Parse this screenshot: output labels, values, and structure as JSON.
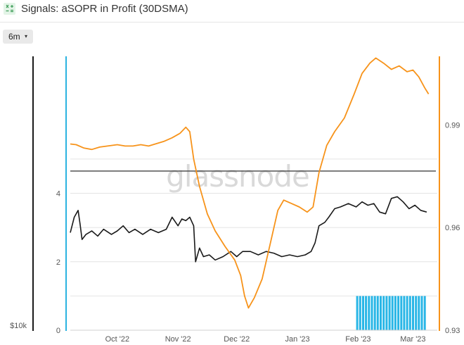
{
  "header": {
    "title": "Signals: aSOPR in Profit (30DSMA)",
    "icon": "spreadsheet-icon"
  },
  "controls": {
    "range_label": "6m",
    "range_caret": "▾"
  },
  "watermark": "glassnode",
  "colors": {
    "black_series": "#1a1a1a",
    "orange_series": "#f7931a",
    "threshold_line": "#444444",
    "signal_bars": "#29b6e6",
    "left_axis": "#1a1a1a",
    "blue_axis": "#2bb3e0",
    "right_axis": "#f7931a"
  },
  "chart_data": {
    "type": "line",
    "x_start": "2022-09-07",
    "x_end": "2023-03-12",
    "xticks": [
      {
        "date": "2022-10-01",
        "label": "Oct '22"
      },
      {
        "date": "2022-11-01",
        "label": "Nov '22"
      },
      {
        "date": "2022-12-01",
        "label": "Dec '22"
      },
      {
        "date": "2023-01-01",
        "label": "Jan '23"
      },
      {
        "date": "2023-02-01",
        "label": "Feb '23"
      },
      {
        "date": "2023-03-01",
        "label": "Mar '23"
      }
    ],
    "left_axis": {
      "ylim": [
        0,
        8
      ],
      "ticks": [
        0,
        2,
        4
      ],
      "bottom_label": "$10k"
    },
    "right_axis": {
      "ylim": [
        0.93,
        1.01
      ],
      "ticks": [
        0.93,
        0.96,
        0.99
      ]
    },
    "threshold": {
      "axis": "left",
      "value": 4.65
    },
    "series": [
      {
        "axis": "left",
        "color_key": "black_series",
        "points": [
          [
            "2022-09-07",
            2.85
          ],
          [
            "2022-09-09",
            3.3
          ],
          [
            "2022-09-11",
            3.5
          ],
          [
            "2022-09-12",
            3.1
          ],
          [
            "2022-09-13",
            2.65
          ],
          [
            "2022-09-15",
            2.8
          ],
          [
            "2022-09-18",
            2.9
          ],
          [
            "2022-09-21",
            2.75
          ],
          [
            "2022-09-24",
            2.95
          ],
          [
            "2022-09-28",
            2.8
          ],
          [
            "2022-10-01",
            2.9
          ],
          [
            "2022-10-04",
            3.05
          ],
          [
            "2022-10-07",
            2.85
          ],
          [
            "2022-10-10",
            2.95
          ],
          [
            "2022-10-14",
            2.8
          ],
          [
            "2022-10-18",
            2.95
          ],
          [
            "2022-10-22",
            2.85
          ],
          [
            "2022-10-26",
            2.95
          ],
          [
            "2022-10-29",
            3.3
          ],
          [
            "2022-11-01",
            3.05
          ],
          [
            "2022-11-03",
            3.25
          ],
          [
            "2022-11-05",
            3.2
          ],
          [
            "2022-11-07",
            3.3
          ],
          [
            "2022-11-09",
            3.05
          ],
          [
            "2022-11-10",
            2.0
          ],
          [
            "2022-11-12",
            2.4
          ],
          [
            "2022-11-14",
            2.15
          ],
          [
            "2022-11-17",
            2.2
          ],
          [
            "2022-11-20",
            2.05
          ],
          [
            "2022-11-24",
            2.15
          ],
          [
            "2022-11-28",
            2.3
          ],
          [
            "2022-12-01",
            2.15
          ],
          [
            "2022-12-04",
            2.3
          ],
          [
            "2022-12-08",
            2.3
          ],
          [
            "2022-12-12",
            2.2
          ],
          [
            "2022-12-16",
            2.3
          ],
          [
            "2022-12-20",
            2.25
          ],
          [
            "2022-12-24",
            2.15
          ],
          [
            "2022-12-28",
            2.2
          ],
          [
            "2023-01-01",
            2.15
          ],
          [
            "2023-01-05",
            2.2
          ],
          [
            "2023-01-08",
            2.3
          ],
          [
            "2023-01-10",
            2.55
          ],
          [
            "2023-01-12",
            3.05
          ],
          [
            "2023-01-15",
            3.15
          ],
          [
            "2023-01-17",
            3.3
          ],
          [
            "2023-01-20",
            3.55
          ],
          [
            "2023-01-23",
            3.6
          ],
          [
            "2023-01-27",
            3.7
          ],
          [
            "2023-01-31",
            3.6
          ],
          [
            "2023-02-03",
            3.75
          ],
          [
            "2023-02-06",
            3.65
          ],
          [
            "2023-02-09",
            3.7
          ],
          [
            "2023-02-12",
            3.45
          ],
          [
            "2023-02-15",
            3.4
          ],
          [
            "2023-02-18",
            3.85
          ],
          [
            "2023-02-21",
            3.9
          ],
          [
            "2023-02-24",
            3.75
          ],
          [
            "2023-02-27",
            3.55
          ],
          [
            "2023-03-02",
            3.65
          ],
          [
            "2023-03-05",
            3.5
          ],
          [
            "2023-03-08",
            3.45
          ]
        ]
      },
      {
        "axis": "right",
        "color_key": "orange_series",
        "points": [
          [
            "2022-09-07",
            0.9844
          ],
          [
            "2022-09-10",
            0.9842
          ],
          [
            "2022-09-14",
            0.9832
          ],
          [
            "2022-09-18",
            0.9828
          ],
          [
            "2022-09-22",
            0.9835
          ],
          [
            "2022-09-26",
            0.9838
          ],
          [
            "2022-10-01",
            0.9842
          ],
          [
            "2022-10-05",
            0.9838
          ],
          [
            "2022-10-09",
            0.9838
          ],
          [
            "2022-10-13",
            0.9842
          ],
          [
            "2022-10-17",
            0.9838
          ],
          [
            "2022-10-21",
            0.9845
          ],
          [
            "2022-10-25",
            0.9852
          ],
          [
            "2022-10-29",
            0.9862
          ],
          [
            "2022-11-02",
            0.9875
          ],
          [
            "2022-11-05",
            0.9893
          ],
          [
            "2022-11-07",
            0.988
          ],
          [
            "2022-11-09",
            0.98
          ],
          [
            "2022-11-12",
            0.972
          ],
          [
            "2022-11-16",
            0.964
          ],
          [
            "2022-11-20",
            0.959
          ],
          [
            "2022-11-25",
            0.9545
          ],
          [
            "2022-11-30",
            0.9505
          ],
          [
            "2022-12-03",
            0.946
          ],
          [
            "2022-12-05",
            0.94
          ],
          [
            "2022-12-07",
            0.9365
          ],
          [
            "2022-12-10",
            0.9395
          ],
          [
            "2022-12-14",
            0.945
          ],
          [
            "2022-12-18",
            0.955
          ],
          [
            "2022-12-22",
            0.965
          ],
          [
            "2022-12-25",
            0.968
          ],
          [
            "2022-12-29",
            0.967
          ],
          [
            "2023-01-02",
            0.966
          ],
          [
            "2023-01-06",
            0.9645
          ],
          [
            "2023-01-09",
            0.966
          ],
          [
            "2023-01-12",
            0.976
          ],
          [
            "2023-01-16",
            0.984
          ],
          [
            "2023-01-20",
            0.988
          ],
          [
            "2023-01-25",
            0.992
          ],
          [
            "2023-01-30",
            0.999
          ],
          [
            "2023-02-03",
            1.005
          ],
          [
            "2023-02-07",
            1.008
          ],
          [
            "2023-02-10",
            1.0095
          ],
          [
            "2023-02-14",
            1.008
          ],
          [
            "2023-02-18",
            1.0062
          ],
          [
            "2023-02-22",
            1.0072
          ],
          [
            "2023-02-26",
            1.0055
          ],
          [
            "2023-03-01",
            1.006
          ],
          [
            "2023-03-04",
            1.004
          ],
          [
            "2023-03-07",
            1.0008
          ],
          [
            "2023-03-09",
            0.999
          ]
        ]
      }
    ],
    "signal_bars": {
      "from": "2023-01-31",
      "to": "2023-03-08",
      "count": 24,
      "height_value": 1.0,
      "axis": "left"
    }
  }
}
